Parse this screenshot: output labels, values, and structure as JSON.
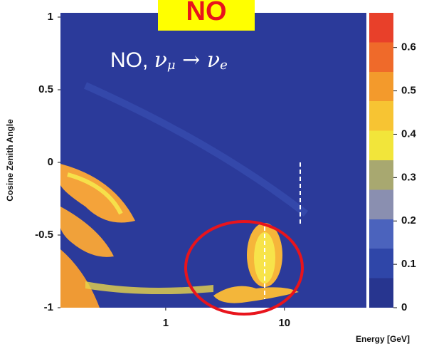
{
  "chart_data": {
    "type": "heatmap",
    "badge": "NO",
    "annotation": [
      "NO, ",
      "ν",
      "μ",
      " → ",
      "ν",
      "e"
    ],
    "ylabel": "Cosine Zenith Angle",
    "xlabel": "Energy [GeV]",
    "xscale": "log",
    "xlim": [
      0.13,
      49
    ],
    "xticks": [
      1,
      10
    ],
    "ylim": [
      -1,
      1
    ],
    "yticks": [
      1,
      0.5,
      0,
      -0.5,
      -1
    ],
    "clim": [
      0,
      0.68
    ],
    "cticks": [
      0.6,
      0.5,
      0.4,
      0.3,
      0.2,
      0.1,
      0
    ],
    "colors": [
      "#27358f",
      "#2f46a8",
      "#4b63bd",
      "#8a8fb0",
      "#a8a870",
      "#f2e53a",
      "#f7c433",
      "#f39a2c",
      "#ef6a2a",
      "#e8402a"
    ]
  }
}
